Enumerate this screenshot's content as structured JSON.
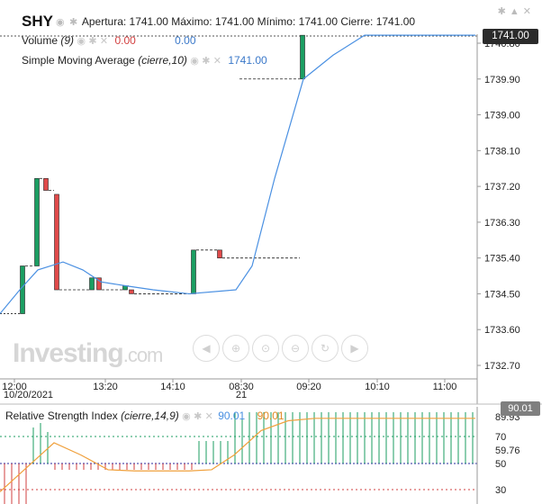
{
  "header": {
    "symbol": "SHY",
    "ohlc": "Apertura: 1741.00 Máximo: 1741.00 Mínimo: 1741.00 Cierre: 1741.00"
  },
  "legends": {
    "volume_label": "Volume",
    "volume_param": "(9)",
    "volume_value_red": "0.00",
    "volume_value_blue": "0.00",
    "sma_label": "Simple Moving Average",
    "sma_param": "(cierre,10)",
    "sma_value": "1741.00"
  },
  "price_axis": {
    "current_price": "1741.00",
    "ticks": [
      "1740.80",
      "1739.90",
      "1739.00",
      "1738.10",
      "1737.20",
      "1736.30",
      "1735.40",
      "1734.50",
      "1733.60",
      "1732.70"
    ]
  },
  "time_axis": {
    "ticks": [
      "12:00",
      "13:20",
      "14:10",
      "08:30",
      "09:20",
      "10:10",
      "11:00"
    ],
    "sub_labels": [
      "10/20/2021",
      "21"
    ]
  },
  "watermark": {
    "brand": "Investing",
    "suffix": ".com"
  },
  "rsi": {
    "label": "Relative Strength Index",
    "param": "(cierre,14,9)",
    "value1": "90.01",
    "value2": "90.01",
    "current": "90.01",
    "ticks": [
      "89.93",
      "70",
      "59.76",
      "50",
      "30"
    ]
  },
  "icons": {
    "visible": "eye-icon",
    "settings": "gear-icon",
    "remove": "close-icon"
  },
  "chart_data": {
    "type": "candlestick",
    "x_labels": [
      "12:00",
      "13:20",
      "14:10",
      "08:30",
      "09:20",
      "10:10",
      "11:00"
    ],
    "ylim": [
      1732.4,
      1741.3
    ],
    "candles": [
      {
        "open": 1734.0,
        "close": 1735.2,
        "high": 1735.2,
        "low": 1734.0,
        "dir": "up"
      },
      {
        "open": 1735.2,
        "close": 1737.4,
        "high": 1737.4,
        "low": 1735.2,
        "dir": "up"
      },
      {
        "open": 1737.4,
        "close": 1737.1,
        "high": 1737.4,
        "low": 1737.1,
        "dir": "down"
      },
      {
        "open": 1737.0,
        "close": 1734.6,
        "high": 1737.0,
        "low": 1734.6,
        "dir": "down"
      },
      {
        "open": 1734.6,
        "close": 1734.9,
        "high": 1734.9,
        "low": 1734.6,
        "dir": "up"
      },
      {
        "open": 1734.9,
        "close": 1734.6,
        "high": 1734.9,
        "low": 1734.6,
        "dir": "down"
      },
      {
        "open": 1734.6,
        "close": 1734.7,
        "high": 1734.7,
        "low": 1734.6,
        "dir": "up"
      },
      {
        "open": 1734.6,
        "close": 1734.5,
        "high": 1734.6,
        "low": 1734.5,
        "dir": "down"
      },
      {
        "open": 1734.5,
        "close": 1735.6,
        "high": 1735.6,
        "low": 1734.5,
        "dir": "up"
      },
      {
        "open": 1735.6,
        "close": 1735.4,
        "high": 1735.6,
        "low": 1735.4,
        "dir": "down"
      },
      {
        "open": 1739.9,
        "close": 1741.0,
        "high": 1741.0,
        "low": 1739.9,
        "dir": "up"
      }
    ],
    "sma": [
      1734.0,
      1734.6,
      1735.1,
      1735.3,
      1735.1,
      1734.8,
      1734.7,
      1734.6,
      1734.5,
      1734.6,
      1735.2,
      1737.4,
      1739.9,
      1740.5,
      1741.0,
      1741.0
    ],
    "rsi_values": [
      30,
      50,
      70,
      60,
      48,
      47,
      47,
      47,
      48,
      60,
      80,
      88,
      90,
      90,
      90
    ]
  },
  "colors": {
    "up": "#1b9e62",
    "down": "#e04a4a",
    "sma": "#4a90e2",
    "rsi": "#f0a03c"
  }
}
